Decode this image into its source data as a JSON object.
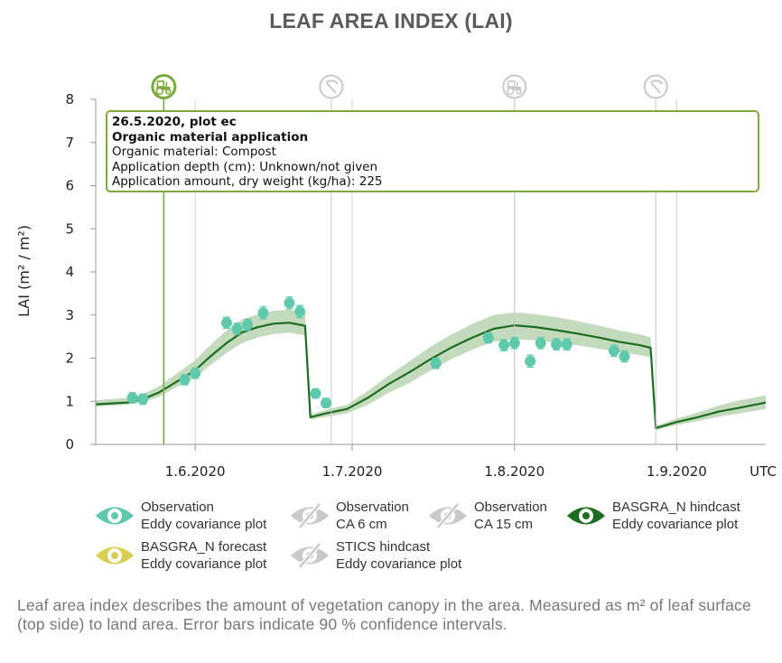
{
  "page": {
    "title": "LEAF AREA INDEX (LAI)",
    "description": "Leaf area index describes the amount of vegetation canopy in the area. Measured as m² of leaf surface (top side) to land area. Error bars indicate 90 % confidence intervals."
  },
  "tooltip": {
    "line1": "26.5.2020, plot ec",
    "line2": "Organic material application",
    "line3": "Organic material: Compost",
    "line4": "Application depth (cm): Unknown/not given",
    "line5": "Application amount, dry weight (kg/ha): 225"
  },
  "legend": [
    {
      "line1": "Observation",
      "line2": "Eddy covariance plot",
      "color": "#5fc9ad",
      "enabled": true,
      "icon": "eye-icon"
    },
    {
      "line1": "Observation",
      "line2": "CA 6 cm",
      "color": "#c9c9c9",
      "enabled": false,
      "icon": "eye-slash-icon"
    },
    {
      "line1": "Observation",
      "line2": "CA 15 cm",
      "color": "#c9c9c9",
      "enabled": false,
      "icon": "eye-slash-icon"
    },
    {
      "line1": "BASGRA_N hindcast",
      "line2": "Eddy covariance plot",
      "color": "#1e6b22",
      "enabled": true,
      "icon": "eye-icon"
    },
    {
      "line1": "BASGRA_N forecast",
      "line2": "Eddy covariance plot",
      "color": "#d8cf52",
      "enabled": true,
      "icon": "eye-icon"
    },
    {
      "line1": "STICS hindcast",
      "line2": "Eddy covariance plot",
      "color": "#c9c9c9",
      "enabled": false,
      "icon": "eye-slash-icon"
    }
  ],
  "chart_data": {
    "type": "line",
    "ylabel": "LAI (m² / m²)",
    "ylim": [
      0,
      8
    ],
    "yticks": [
      0,
      1,
      2,
      3,
      4,
      5,
      6,
      7,
      8
    ],
    "xlim": [
      "2020-05-13",
      "2020-09-18"
    ],
    "xticks": [
      {
        "date": "2020-06-01",
        "label": "1.6.2020"
      },
      {
        "date": "2020-07-01",
        "label": "1.7.2020"
      },
      {
        "date": "2020-08-01",
        "label": "1.8.2020"
      },
      {
        "date": "2020-09-01",
        "label": "1.9.2020"
      }
    ],
    "timezone_label": "UTC",
    "colors": {
      "observation": "#5fc9ad",
      "hindcast_line": "#1e6b22",
      "hindcast_band": "#b9d4b1",
      "event_selected": "#7aab3c",
      "event_other": "#c8c8c8"
    },
    "events": [
      {
        "date": "2020-05-26",
        "icon": "tractor-icon",
        "selected": true
      },
      {
        "date": "2020-06-27",
        "icon": "scythe-icon",
        "selected": false
      },
      {
        "date": "2020-08-01",
        "icon": "tractor-icon",
        "selected": false
      },
      {
        "date": "2020-08-28",
        "icon": "scythe-icon",
        "selected": false
      }
    ],
    "series": [
      {
        "name": "Observation, Eddy covariance plot",
        "kind": "scatter",
        "points": [
          {
            "x": "2020-05-20",
            "y": 1.08,
            "err": 0.12
          },
          {
            "x": "2020-05-22",
            "y": 1.05,
            "err": 0.12
          },
          {
            "x": "2020-05-30",
            "y": 1.5,
            "err": 0.12
          },
          {
            "x": "2020-06-01",
            "y": 1.65,
            "err": 0.12
          },
          {
            "x": "2020-06-07",
            "y": 2.82,
            "err": 0.13
          },
          {
            "x": "2020-06-09",
            "y": 2.68,
            "err": 0.13
          },
          {
            "x": "2020-06-11",
            "y": 2.77,
            "err": 0.13
          },
          {
            "x": "2020-06-14",
            "y": 3.05,
            "err": 0.14
          },
          {
            "x": "2020-06-19",
            "y": 3.28,
            "err": 0.14
          },
          {
            "x": "2020-06-21",
            "y": 3.08,
            "err": 0.14
          },
          {
            "x": "2020-06-24",
            "y": 1.18,
            "err": 0.11
          },
          {
            "x": "2020-06-26",
            "y": 0.96,
            "err": 0.11
          },
          {
            "x": "2020-07-17",
            "y": 1.88,
            "err": 0.12
          },
          {
            "x": "2020-07-27",
            "y": 2.47,
            "err": 0.12
          },
          {
            "x": "2020-07-30",
            "y": 2.3,
            "err": 0.13
          },
          {
            "x": "2020-08-01",
            "y": 2.35,
            "err": 0.13
          },
          {
            "x": "2020-08-04",
            "y": 1.93,
            "err": 0.14
          },
          {
            "x": "2020-08-06",
            "y": 2.35,
            "err": 0.13
          },
          {
            "x": "2020-08-09",
            "y": 2.32,
            "err": 0.13
          },
          {
            "x": "2020-08-11",
            "y": 2.32,
            "err": 0.13
          },
          {
            "x": "2020-08-20",
            "y": 2.17,
            "err": 0.13
          },
          {
            "x": "2020-08-22",
            "y": 2.04,
            "err": 0.13
          }
        ]
      },
      {
        "name": "BASGRA_N hindcast, Eddy covariance plot",
        "kind": "line",
        "x": [
          "2020-05-13",
          "2020-05-16",
          "2020-05-19",
          "2020-05-22",
          "2020-05-25",
          "2020-05-28",
          "2020-06-01",
          "2020-06-04",
          "2020-06-07",
          "2020-06-10",
          "2020-06-13",
          "2020-06-16",
          "2020-06-19",
          "2020-06-22",
          "2020-06-23",
          "2020-06-26",
          "2020-06-30",
          "2020-07-04",
          "2020-07-08",
          "2020-07-12",
          "2020-07-16",
          "2020-07-20",
          "2020-07-24",
          "2020-07-28",
          "2020-08-01",
          "2020-08-05",
          "2020-08-09",
          "2020-08-13",
          "2020-08-17",
          "2020-08-21",
          "2020-08-25",
          "2020-08-27",
          "2020-08-28",
          "2020-09-01",
          "2020-09-05",
          "2020-09-09",
          "2020-09-13",
          "2020-09-18"
        ],
        "y": [
          0.93,
          0.95,
          0.97,
          1.05,
          1.2,
          1.42,
          1.72,
          2.05,
          2.35,
          2.6,
          2.72,
          2.8,
          2.82,
          2.75,
          0.63,
          0.72,
          0.82,
          1.08,
          1.4,
          1.68,
          1.98,
          2.25,
          2.48,
          2.68,
          2.76,
          2.72,
          2.65,
          2.57,
          2.48,
          2.38,
          2.3,
          2.24,
          0.38,
          0.52,
          0.63,
          0.76,
          0.85,
          0.97
        ],
        "lower": [
          0.88,
          0.9,
          0.92,
          0.98,
          1.1,
          1.3,
          1.55,
          1.85,
          2.12,
          2.35,
          2.48,
          2.56,
          2.59,
          2.53,
          0.57,
          0.64,
          0.72,
          0.92,
          1.2,
          1.43,
          1.72,
          1.98,
          2.2,
          2.38,
          2.44,
          2.41,
          2.36,
          2.3,
          2.22,
          2.14,
          2.07,
          2.02,
          0.33,
          0.45,
          0.54,
          0.64,
          0.72,
          0.82
        ],
        "upper": [
          1.02,
          1.05,
          1.08,
          1.17,
          1.34,
          1.6,
          1.95,
          2.32,
          2.64,
          2.9,
          3.02,
          3.1,
          3.12,
          3.05,
          0.7,
          0.8,
          0.92,
          1.24,
          1.6,
          1.93,
          2.27,
          2.55,
          2.8,
          3.0,
          3.06,
          3.02,
          2.95,
          2.86,
          2.76,
          2.64,
          2.55,
          2.48,
          0.43,
          0.6,
          0.74,
          0.9,
          1.02,
          1.14
        ]
      }
    ]
  }
}
